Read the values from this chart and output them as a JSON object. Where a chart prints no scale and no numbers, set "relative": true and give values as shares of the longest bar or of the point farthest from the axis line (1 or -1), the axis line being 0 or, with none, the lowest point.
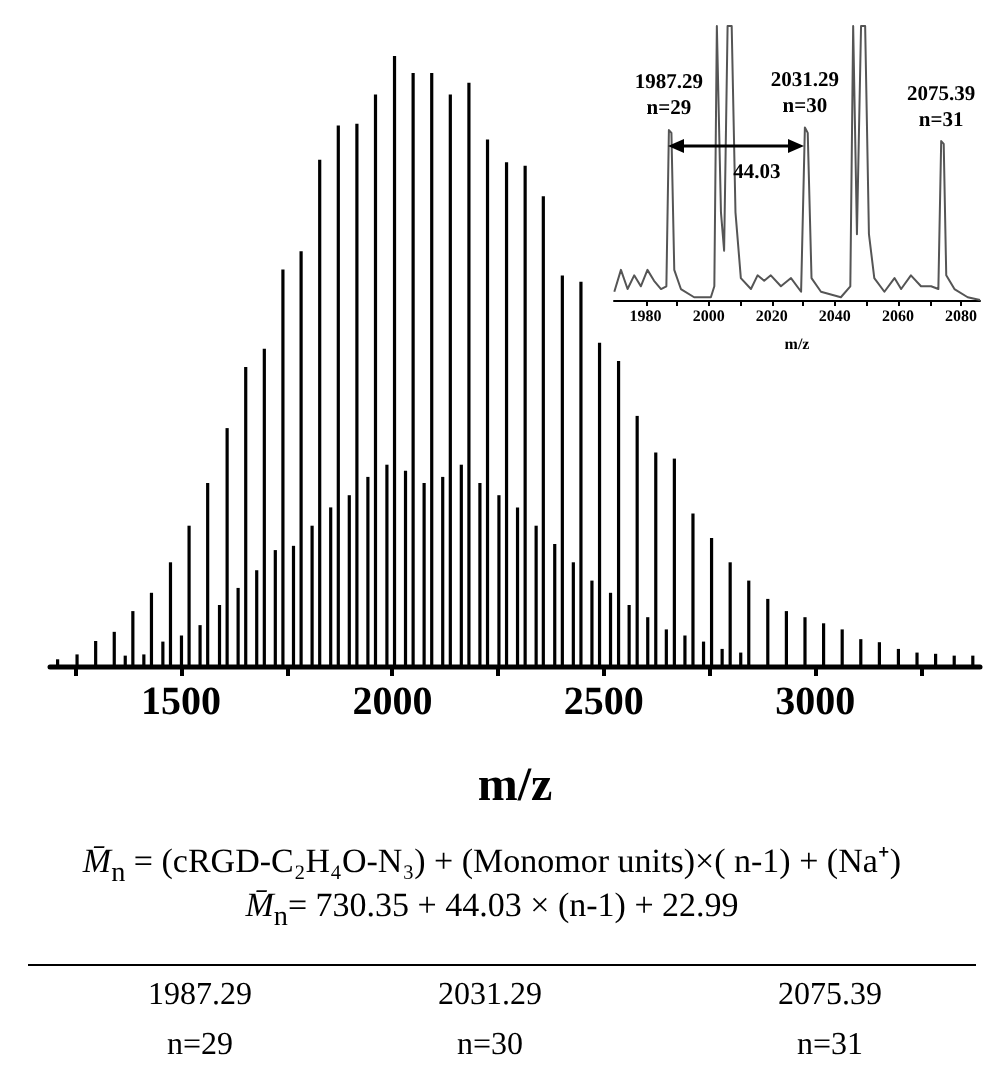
{
  "chart_data": [
    {
      "type": "bar",
      "relative": true,
      "xlabel": "m/z",
      "xlim": [
        1190,
        3390
      ],
      "xticks": [
        {
          "value": 1250,
          "label": null
        },
        1500,
        {
          "value": 1750,
          "label": null
        },
        2000,
        {
          "value": 2250,
          "label": null
        },
        2500,
        {
          "value": 2750,
          "label": null
        },
        3000,
        {
          "value": 3250,
          "label": null
        }
      ],
      "series": [
        {
          "color": "#000000",
          "x": [
            1208,
            1254,
            1298,
            1342,
            1386,
            1430,
            1475,
            1519,
            1563,
            1609,
            1653,
            1697,
            1741,
            1784,
            1828,
            1872,
            1916,
            1960,
            2005,
            2049,
            2093,
            2137,
            2181,
            2225,
            2270,
            2314,
            2357,
            2402,
            2446,
            2490,
            2535,
            2579,
            2623,
            2667,
            2711,
            2755,
            2799,
            2843,
            2888,
            2932,
            2976,
            3020,
            3064,
            3108,
            3152,
            3197,
            3241,
            3285,
            3329,
            3373
          ],
          "values": [
            0.011,
            0.019,
            0.041,
            0.056,
            0.09,
            0.12,
            0.17,
            0.23,
            0.3,
            0.39,
            0.49,
            0.52,
            0.65,
            0.68,
            0.83,
            0.886,
            0.889,
            0.937,
            1.0,
            0.972,
            0.972,
            0.937,
            0.956,
            0.863,
            0.826,
            0.82,
            0.77,
            0.64,
            0.63,
            0.53,
            0.5,
            0.41,
            0.35,
            0.34,
            0.25,
            0.21,
            0.17,
            0.14,
            0.11,
            0.09,
            0.08,
            0.07,
            0.06,
            0.044,
            0.039,
            0.028,
            0.022,
            0.02,
            0.017,
            0.017
          ]
        },
        {
          "color": "#000000",
          "x": [
            1368,
            1412,
            1457,
            1501,
            1545,
            1591,
            1635,
            1679,
            1723,
            1766,
            1810,
            1854,
            1898,
            1942,
            1987,
            2031,
            2075,
            2119,
            2163,
            2207,
            2252,
            2296,
            2340,
            2384,
            2428,
            2472,
            2516,
            2560,
            2604,
            2648,
            2692,
            2736,
            2780,
            2824
          ],
          "values": [
            0.017,
            0.019,
            0.04,
            0.05,
            0.067,
            0.1,
            0.128,
            0.157,
            0.19,
            0.197,
            0.23,
            0.26,
            0.28,
            0.31,
            0.33,
            0.32,
            0.3,
            0.31,
            0.33,
            0.3,
            0.28,
            0.26,
            0.23,
            0.2,
            0.17,
            0.14,
            0.12,
            0.1,
            0.08,
            0.06,
            0.05,
            0.04,
            0.028,
            0.022
          ]
        }
      ],
      "annotations": [
        "M̄$_{n}$ = (cRGD-C₂H₄O-N₃) + (Monomor units)×( n-1) + (Na⁺)",
        "M̄$_{n}$= 730.35 + 44.03 × (n-1) + 22.99",
        "1987.29",
        "2031.29",
        "2075.39",
        "n=29",
        "n=30",
        "n=31"
      ]
    },
    {
      "type": "line",
      "relative": true,
      "xlabel": "m/z",
      "xlim": [
        1970,
        2086
      ],
      "color": "#555555",
      "xticks": [
        1980,
        {
          "value": 1990,
          "label": null
        },
        2000,
        {
          "value": 2010,
          "label": null
        },
        2020,
        {
          "value": 2030,
          "label": null
        },
        2040,
        {
          "value": 2050,
          "label": null
        },
        2060,
        {
          "value": 2070,
          "label": null
        },
        2080
      ],
      "x": [
        1970.1,
        1972.2,
        1974.3,
        1976.4,
        1978.5,
        1980.6,
        1982.7,
        1984.9,
        1986.6,
        1987.4,
        1988.2,
        1989.1,
        1991.2,
        1995.4,
        2000.7,
        2001.8,
        2002.6,
        2003.9,
        2004.9,
        2006.0,
        2007.3,
        2008.5,
        2010.2,
        2013.4,
        2015.5,
        2017.6,
        2019.7,
        2022.9,
        2026.1,
        2029.3,
        2030.5,
        2031.4,
        2032.6,
        2035.6,
        2041.9,
        2044.9,
        2045.8,
        2047.0,
        2048.3,
        2049.6,
        2050.8,
        2052.5,
        2055.7,
        2058.9,
        2061.0,
        2064.1,
        2067.3,
        2070.5,
        2072.8,
        2073.7,
        2074.5,
        2075.3,
        2077.9,
        2082.1,
        2086
      ],
      "values": [
        0.03,
        0.11,
        0.04,
        0.09,
        0.05,
        0.11,
        0.07,
        0.04,
        0.05,
        0.62,
        0.61,
        0.11,
        0.04,
        0.01,
        0.01,
        0.05,
        1.0,
        0.32,
        0.18,
        1.0,
        1.0,
        0.32,
        0.08,
        0.04,
        0.09,
        0.07,
        0.09,
        0.05,
        0.08,
        0.03,
        0.63,
        0.61,
        0.08,
        0.03,
        0.01,
        0.05,
        1.0,
        0.24,
        1.0,
        1.0,
        0.24,
        0.08,
        0.03,
        0.08,
        0.04,
        0.09,
        0.05,
        0.05,
        0.04,
        0.58,
        0.57,
        0.09,
        0.04,
        0.01,
        0.0
      ],
      "annotations": [
        {
          "text": "1987.29\nn=29",
          "x": 1987.4,
          "y": 0.62
        },
        {
          "text": "2031.29\nn=30",
          "x": 2030.5,
          "y": 0.63
        },
        {
          "text": "2075.39\nn=31",
          "x": 2073.7,
          "y": 0.58
        },
        "44.03"
      ]
    }
  ]
}
